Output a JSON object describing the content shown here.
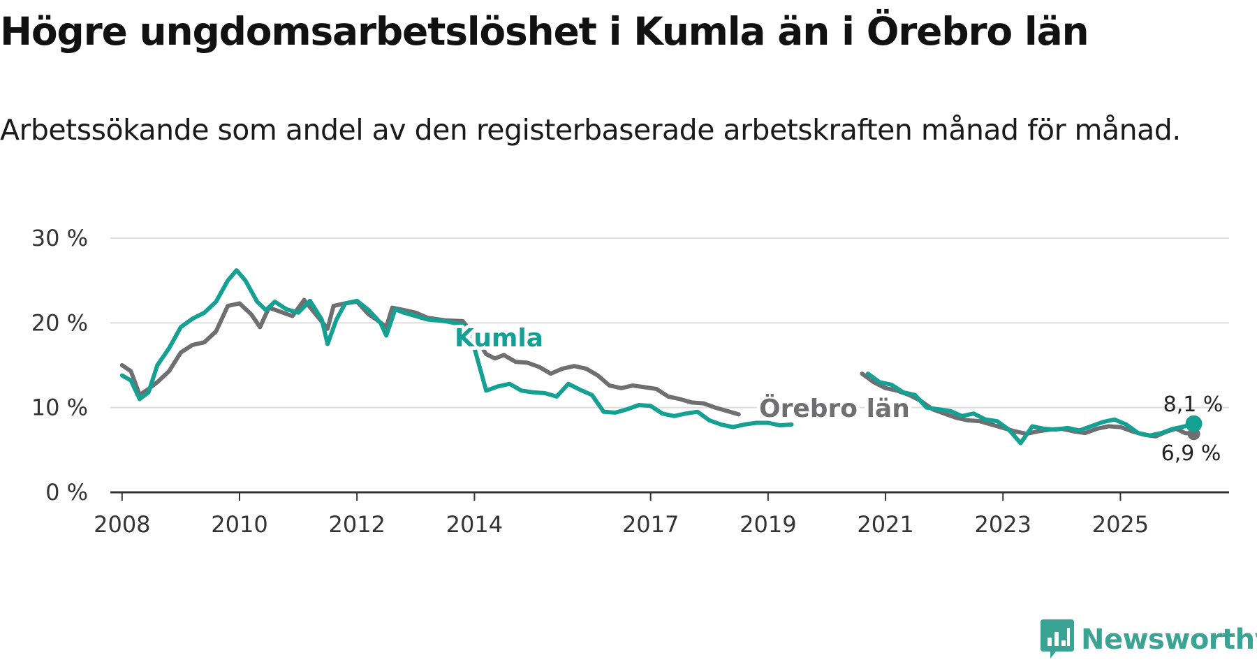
{
  "chart_data": {
    "type": "line",
    "title": "Högre ungdomsarbetslöshet i Kumla än i Örebro län",
    "subtitle": "Arbetssökande som andel av den registerbaserade arbetskraften månad för månad.",
    "xlabel": "",
    "ylabel": "",
    "xlim": [
      2007.8,
      2026.85
    ],
    "ylim": [
      0,
      30
    ],
    "y_ticks": [
      0,
      10,
      20,
      30
    ],
    "y_tick_labels": [
      "0 %",
      "10 %",
      "20 %",
      "30 %"
    ],
    "x_ticks": [
      2008,
      2010,
      2012,
      2014,
      2017,
      2019,
      2021,
      2023,
      2025
    ],
    "x_tick_labels": [
      "2008",
      "2010",
      "2012",
      "2014",
      "2017",
      "2019",
      "2021",
      "2023",
      "2025"
    ],
    "grid": true,
    "series": [
      {
        "name": "Örebro län",
        "color": "#6e6e73",
        "label_text": "Örebro län",
        "end_label": "6,9 %",
        "points": [
          [
            2008.0,
            15.0
          ],
          [
            2008.15,
            14.3
          ],
          [
            2008.3,
            11.5
          ],
          [
            2008.45,
            12.2
          ],
          [
            2008.6,
            13.0
          ],
          [
            2008.8,
            14.3
          ],
          [
            2009.0,
            16.5
          ],
          [
            2009.2,
            17.4
          ],
          [
            2009.4,
            17.7
          ],
          [
            2009.6,
            19.0
          ],
          [
            2009.8,
            22.0
          ],
          [
            2010.0,
            22.3
          ],
          [
            2010.2,
            21.0
          ],
          [
            2010.35,
            19.5
          ],
          [
            2010.5,
            21.8
          ],
          [
            2010.7,
            21.3
          ],
          [
            2010.9,
            20.8
          ],
          [
            2011.1,
            22.7
          ],
          [
            2011.3,
            21.0
          ],
          [
            2011.5,
            19.3
          ],
          [
            2011.6,
            22.0
          ],
          [
            2011.8,
            22.3
          ],
          [
            2012.0,
            22.5
          ],
          [
            2012.2,
            21.0
          ],
          [
            2012.35,
            20.3
          ],
          [
            2012.5,
            19.5
          ],
          [
            2012.6,
            21.8
          ],
          [
            2012.8,
            21.5
          ],
          [
            2013.0,
            21.2
          ],
          [
            2013.2,
            20.6
          ],
          [
            2013.5,
            20.3
          ],
          [
            2013.8,
            20.2
          ],
          [
            2014.0,
            18.5
          ],
          [
            2014.2,
            16.3
          ],
          [
            2014.35,
            15.8
          ],
          [
            2014.5,
            16.2
          ],
          [
            2014.7,
            15.4
          ],
          [
            2014.9,
            15.3
          ],
          [
            2015.1,
            14.8
          ],
          [
            2015.3,
            14.0
          ],
          [
            2015.5,
            14.6
          ],
          [
            2015.7,
            14.9
          ],
          [
            2015.9,
            14.6
          ],
          [
            2016.1,
            13.8
          ],
          [
            2016.3,
            12.6
          ],
          [
            2016.5,
            12.3
          ],
          [
            2016.7,
            12.6
          ],
          [
            2016.9,
            12.4
          ],
          [
            2017.1,
            12.2
          ],
          [
            2017.3,
            11.3
          ],
          [
            2017.5,
            11.0
          ],
          [
            2017.7,
            10.6
          ],
          [
            2017.9,
            10.5
          ],
          [
            2018.1,
            10.0
          ],
          [
            2018.3,
            9.6
          ],
          [
            2018.5,
            9.2
          ]
        ],
        "points_2": [
          [
            2020.6,
            14.0
          ],
          [
            2020.8,
            13.0
          ],
          [
            2021.0,
            12.3
          ],
          [
            2021.2,
            12.0
          ],
          [
            2021.4,
            11.5
          ],
          [
            2021.6,
            10.8
          ],
          [
            2021.8,
            9.8
          ],
          [
            2022.0,
            9.3
          ],
          [
            2022.2,
            8.8
          ],
          [
            2022.4,
            8.5
          ],
          [
            2022.6,
            8.4
          ],
          [
            2022.8,
            8.0
          ],
          [
            2023.0,
            7.6
          ],
          [
            2023.2,
            7.2
          ],
          [
            2023.4,
            6.9
          ],
          [
            2023.6,
            7.2
          ],
          [
            2023.8,
            7.4
          ],
          [
            2024.0,
            7.5
          ],
          [
            2024.2,
            7.2
          ],
          [
            2024.4,
            7.0
          ],
          [
            2024.6,
            7.5
          ],
          [
            2024.8,
            7.8
          ],
          [
            2025.0,
            7.7
          ],
          [
            2025.2,
            7.2
          ],
          [
            2025.4,
            6.8
          ],
          [
            2025.6,
            6.6
          ],
          [
            2025.8,
            7.2
          ],
          [
            2025.95,
            7.5
          ],
          [
            2026.1,
            7.0
          ],
          [
            2026.25,
            6.9
          ]
        ]
      },
      {
        "name": "Kumla",
        "color": "#14a093",
        "label_text": "Kumla",
        "end_label": "8,1 %",
        "points": [
          [
            2008.0,
            13.8
          ],
          [
            2008.15,
            13.2
          ],
          [
            2008.3,
            11.0
          ],
          [
            2008.45,
            11.8
          ],
          [
            2008.6,
            15.0
          ],
          [
            2008.8,
            17.0
          ],
          [
            2009.0,
            19.5
          ],
          [
            2009.2,
            20.5
          ],
          [
            2009.4,
            21.2
          ],
          [
            2009.6,
            22.5
          ],
          [
            2009.8,
            25.0
          ],
          [
            2009.95,
            26.2
          ],
          [
            2010.1,
            25.0
          ],
          [
            2010.3,
            22.5
          ],
          [
            2010.45,
            21.5
          ],
          [
            2010.6,
            22.5
          ],
          [
            2010.8,
            21.6
          ],
          [
            2011.0,
            21.2
          ],
          [
            2011.2,
            22.6
          ],
          [
            2011.4,
            20.4
          ],
          [
            2011.5,
            17.5
          ],
          [
            2011.65,
            20.4
          ],
          [
            2011.8,
            22.3
          ],
          [
            2012.0,
            22.6
          ],
          [
            2012.2,
            21.5
          ],
          [
            2012.4,
            20.0
          ],
          [
            2012.5,
            18.5
          ],
          [
            2012.65,
            21.6
          ],
          [
            2012.8,
            21.2
          ],
          [
            2013.0,
            20.8
          ],
          [
            2013.2,
            20.4
          ],
          [
            2013.5,
            20.2
          ],
          [
            2013.8,
            19.8
          ],
          [
            2014.0,
            17.0
          ],
          [
            2014.2,
            12.0
          ],
          [
            2014.4,
            12.5
          ],
          [
            2014.6,
            12.8
          ],
          [
            2014.8,
            12.0
          ],
          [
            2015.0,
            11.8
          ],
          [
            2015.2,
            11.7
          ],
          [
            2015.4,
            11.3
          ],
          [
            2015.6,
            12.8
          ],
          [
            2015.8,
            12.1
          ],
          [
            2016.0,
            11.5
          ],
          [
            2016.2,
            9.5
          ],
          [
            2016.4,
            9.4
          ],
          [
            2016.6,
            9.8
          ],
          [
            2016.8,
            10.3
          ],
          [
            2017.0,
            10.2
          ],
          [
            2017.2,
            9.3
          ],
          [
            2017.4,
            9.0
          ],
          [
            2017.6,
            9.3
          ],
          [
            2017.8,
            9.5
          ],
          [
            2018.0,
            8.5
          ],
          [
            2018.2,
            8.0
          ],
          [
            2018.4,
            7.7
          ],
          [
            2018.6,
            8.0
          ],
          [
            2018.8,
            8.2
          ],
          [
            2019.0,
            8.2
          ],
          [
            2019.2,
            7.9
          ],
          [
            2019.4,
            8.0
          ]
        ],
        "points_2": [
          [
            2020.7,
            14.0
          ],
          [
            2020.9,
            13.0
          ],
          [
            2021.1,
            12.7
          ],
          [
            2021.3,
            11.8
          ],
          [
            2021.5,
            11.5
          ],
          [
            2021.7,
            10.0
          ],
          [
            2021.9,
            9.8
          ],
          [
            2022.1,
            9.6
          ],
          [
            2022.3,
            9.0
          ],
          [
            2022.5,
            9.3
          ],
          [
            2022.7,
            8.6
          ],
          [
            2022.9,
            8.4
          ],
          [
            2023.1,
            7.4
          ],
          [
            2023.3,
            5.8
          ],
          [
            2023.5,
            7.8
          ],
          [
            2023.7,
            7.5
          ],
          [
            2023.9,
            7.4
          ],
          [
            2024.1,
            7.6
          ],
          [
            2024.3,
            7.3
          ],
          [
            2024.5,
            7.8
          ],
          [
            2024.7,
            8.3
          ],
          [
            2024.9,
            8.6
          ],
          [
            2025.1,
            8.0
          ],
          [
            2025.3,
            7.0
          ],
          [
            2025.5,
            6.7
          ],
          [
            2025.7,
            7.0
          ],
          [
            2025.9,
            7.5
          ],
          [
            2026.1,
            7.8
          ],
          [
            2026.25,
            8.1
          ]
        ]
      }
    ]
  },
  "brand": {
    "name": "Newsworthy"
  }
}
